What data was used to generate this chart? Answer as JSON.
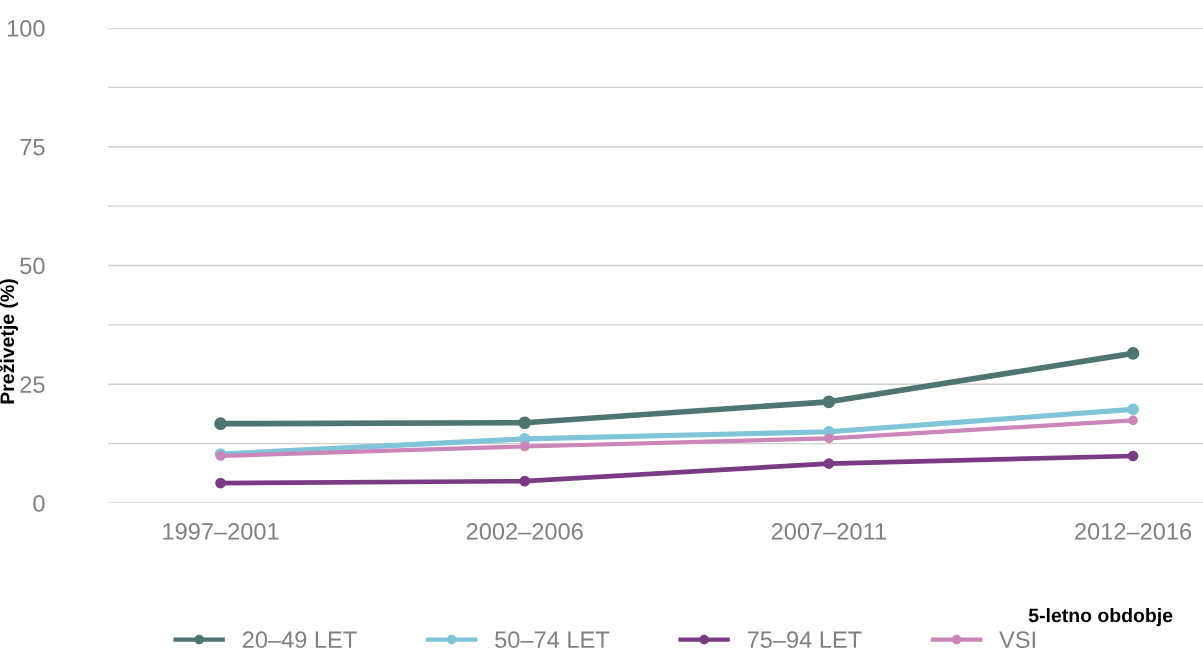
{
  "chart_data": {
    "type": "line",
    "categories": [
      "1997–2001",
      "2002–2006",
      "2007–2011",
      "2012–2016"
    ],
    "series": [
      {
        "name": "20–49 LET",
        "color": "#4e7571",
        "values": [
          16.7,
          16.9,
          21.3,
          31.5
        ]
      },
      {
        "name": "50–74 LET",
        "color": "#7fc4d8",
        "values": [
          10.3,
          13.5,
          15.0,
          19.7
        ]
      },
      {
        "name": "75–94 LET",
        "color": "#7b3b84",
        "values": [
          4.2,
          4.6,
          8.3,
          9.9
        ]
      },
      {
        "name": "VSI",
        "color": "#cc85b8",
        "values": [
          9.9,
          11.9,
          13.6,
          17.4
        ]
      }
    ],
    "xlabel": "5-letno obdobje",
    "ylabel": "Preživetje (%)",
    "ylim": [
      0,
      100
    ],
    "yticks": [
      0,
      {
        "value": 12.5,
        "label": null
      },
      25,
      {
        "value": 37.5,
        "label": null
      },
      50,
      {
        "value": 62.5,
        "label": null
      },
      75,
      {
        "value": 87.5,
        "label": null
      },
      100
    ],
    "grid": "y",
    "legend": "bottom",
    "marker": "circle",
    "line_style": "solid"
  }
}
